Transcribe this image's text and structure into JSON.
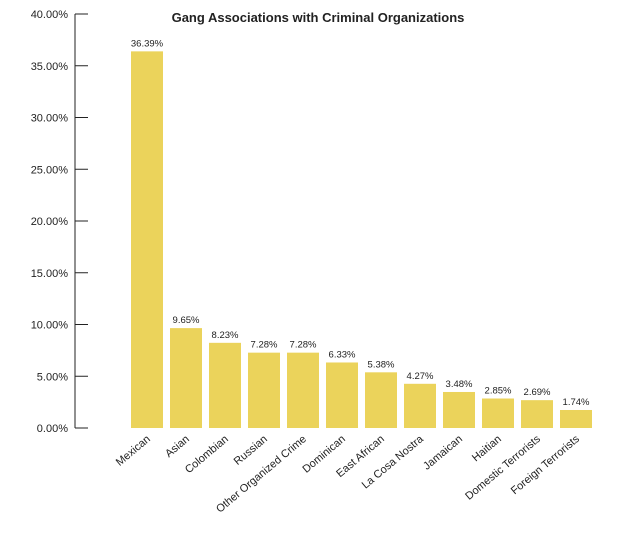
{
  "chart_data": {
    "type": "bar",
    "title": "Gang Associations with Criminal Organizations",
    "categories": [
      "Mexican",
      "Asian",
      "Colombian",
      "Russian",
      "Other Organized Crime",
      "Dominican",
      "East African",
      "La Cosa Nostra",
      "Jamaican",
      "Haitian",
      "Domestic Terrorists",
      "Foreign Terrorists"
    ],
    "values": [
      36.39,
      9.65,
      8.23,
      7.28,
      7.28,
      6.33,
      5.38,
      4.27,
      3.48,
      2.85,
      2.69,
      1.74
    ],
    "value_labels": [
      "36.39%",
      "9.65%",
      "8.23%",
      "7.28%",
      "7.28%",
      "6.33%",
      "5.38%",
      "4.27%",
      "3.48%",
      "2.85%",
      "2.69%",
      "1.74%"
    ],
    "color": "#ebd35b",
    "ylim": [
      0,
      40
    ],
    "yticks": [
      {
        "value": 0,
        "label": "0.00%"
      },
      {
        "value": 5,
        "label": "5.00%"
      },
      {
        "value": 10,
        "label": "10.00%"
      },
      {
        "value": 15,
        "label": "15.00%"
      },
      {
        "value": 20,
        "label": "20.00%"
      },
      {
        "value": 25,
        "label": "25.00%"
      },
      {
        "value": 30,
        "label": "30.00%"
      },
      {
        "value": 35,
        "label": "35.00%"
      },
      {
        "value": 40,
        "label": "40.00%"
      }
    ],
    "grid": false
  }
}
